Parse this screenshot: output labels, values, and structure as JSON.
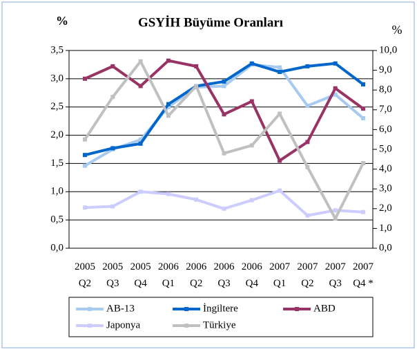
{
  "chart_data": {
    "type": "line",
    "title": "GSYİH Büyüme Oranları",
    "y_label": "%",
    "y2_label": "%",
    "categories": [
      "2005 Q2",
      "2005 Q3",
      "2005 Q4",
      "2006 Q1",
      "2006 Q2",
      "2006 Q3",
      "2006 Q4",
      "2007 Q1",
      "2007 Q2",
      "2007 Q3",
      "2007 Q4 *"
    ],
    "series": [
      {
        "name": "AB-13",
        "color": "#a6caf0",
        "values": [
          1.46,
          1.75,
          1.92,
          2.5,
          2.85,
          2.87,
          3.25,
          3.2,
          2.52,
          2.72,
          2.3
        ]
      },
      {
        "name": "İngiltere",
        "color": "#0066cc",
        "values": [
          1.65,
          1.77,
          1.85,
          2.55,
          2.87,
          2.95,
          3.27,
          3.12,
          3.22,
          3.27,
          2.9
        ]
      },
      {
        "name": "ABD",
        "color": "#993366",
        "values": [
          3.0,
          3.22,
          2.87,
          3.32,
          3.22,
          2.37,
          2.6,
          1.55,
          1.88,
          2.83,
          2.47
        ]
      },
      {
        "name": "Japonya",
        "color": "#ccccff",
        "values": [
          0.72,
          0.74,
          1.0,
          0.96,
          0.86,
          0.7,
          0.85,
          1.02,
          0.58,
          0.67,
          0.64
        ]
      },
      {
        "name": "Türkiye",
        "color": "#c0c0c0",
        "axis": "y2",
        "values": [
          5.5,
          7.65,
          9.45,
          6.7,
          8.2,
          4.8,
          5.2,
          6.8,
          4.1,
          1.5,
          4.3
        ]
      }
    ],
    "ylim": [
      0,
      3.5
    ],
    "yticks": [
      {
        "value": 0,
        "label": "0,0"
      },
      {
        "value": 0.5,
        "label": "0,5"
      },
      {
        "value": 1,
        "label": "1,0"
      },
      {
        "value": 1.5,
        "label": "1,5"
      },
      {
        "value": 2,
        "label": "2,0"
      },
      {
        "value": 2.5,
        "label": "2,5"
      },
      {
        "value": 3,
        "label": "3,0"
      },
      {
        "value": 3.5,
        "label": "3,5"
      }
    ],
    "y2lim": [
      0,
      10
    ],
    "y2ticks": [
      {
        "value": 0,
        "label": "0,0"
      },
      {
        "value": 1,
        "label": "1,0"
      },
      {
        "value": 2,
        "label": "2,0"
      },
      {
        "value": 3,
        "label": "3,0"
      },
      {
        "value": 4,
        "label": "4,0"
      },
      {
        "value": 5,
        "label": "5,0"
      },
      {
        "value": 6,
        "label": "6,0"
      },
      {
        "value": 7,
        "label": "7,0"
      },
      {
        "value": 8,
        "label": "8,0"
      },
      {
        "value": 9,
        "label": "9,0"
      },
      {
        "value": 10,
        "label": "10,0"
      }
    ],
    "grid": true
  }
}
